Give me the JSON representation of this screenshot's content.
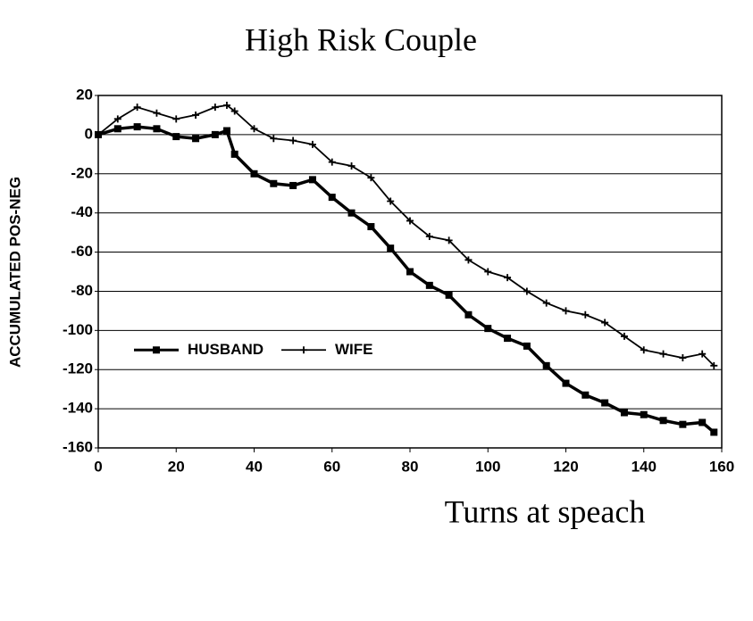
{
  "chart_data": {
    "type": "line",
    "title": "High Risk Couple",
    "x_label": "Turns at speach",
    "y_label": "ACCUMULATED POS-NEG",
    "x": [
      0,
      5,
      10,
      15,
      20,
      25,
      30,
      33,
      35,
      40,
      45,
      50,
      55,
      60,
      65,
      70,
      75,
      80,
      85,
      90,
      95,
      100,
      105,
      110,
      115,
      120,
      125,
      130,
      135,
      140,
      145,
      150,
      155,
      158
    ],
    "series": [
      {
        "name": "HUSBAND",
        "color": "#000000",
        "marker": "square",
        "values": [
          0,
          3,
          4,
          3,
          -1,
          -2,
          0,
          2,
          -10,
          -20,
          -25,
          -26,
          -23,
          -32,
          -40,
          -47,
          -58,
          -70,
          -77,
          -82,
          -92,
          -99,
          -104,
          -108,
          -118,
          -127,
          -133,
          -137,
          -142,
          -143,
          -146,
          -148,
          -147,
          -152
        ]
      },
      {
        "name": "WIFE",
        "color": "#000000",
        "marker": "plus",
        "values": [
          0,
          8,
          14,
          11,
          8,
          10,
          14,
          15,
          12,
          3,
          -2,
          -3,
          -5,
          -14,
          -16,
          -22,
          -34,
          -44,
          -52,
          -54,
          -64,
          -70,
          -73,
          -80,
          -86,
          -90,
          -92,
          -96,
          -103,
          -110,
          -112,
          -114,
          -112,
          -118
        ]
      }
    ],
    "xlim": [
      0,
      160
    ],
    "xticks": [
      0,
      20,
      40,
      60,
      80,
      100,
      120,
      140,
      160
    ],
    "ylim": [
      -160,
      20
    ],
    "yticks": [
      -160,
      -140,
      -120,
      -100,
      -80,
      -60,
      -40,
      -20,
      0,
      20
    ],
    "grid": true,
    "legend": "center-left"
  }
}
